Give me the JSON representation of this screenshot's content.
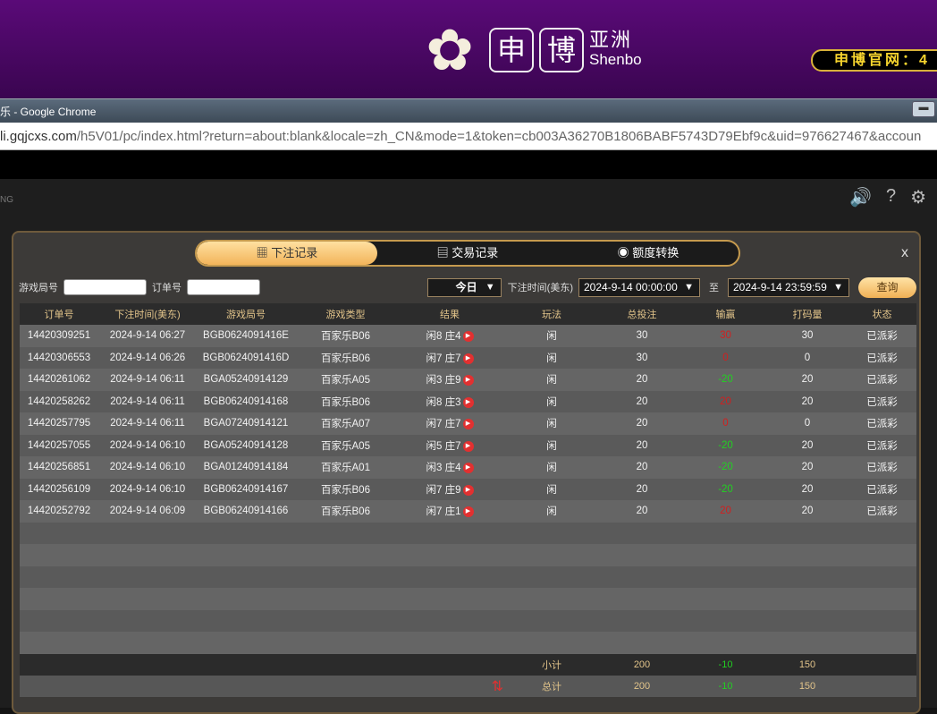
{
  "banner": {
    "logo_cn1": "申",
    "logo_cn2": "博",
    "logo_cn3": "亚洲",
    "logo_en": "Shenbo",
    "official": "申博官网：4"
  },
  "browser": {
    "title": "乐 - Google Chrome",
    "url_host": "li.gqjcxs.com",
    "url_path": "/h5V01/pc/index.html?return=about:blank&locale=zh_CN&mode=1&token=cb003A36270B1806BABF5743D79Ebf9c&uid=976627467&accoun"
  },
  "game": {
    "brand_fragment": "NG"
  },
  "modal": {
    "tabs": [
      {
        "label": "下注记录",
        "icon": "calendar-icon"
      },
      {
        "label": "交易记录",
        "icon": "clipboard-icon"
      },
      {
        "label": "额度转换",
        "icon": "coins-icon"
      }
    ],
    "close": "x",
    "filter": {
      "round_label": "游戏局号",
      "order_label": "订单号",
      "period": "今日",
      "time_label": "下注时间(美东)",
      "start": "2024-9-14 00:00:00",
      "to": "至",
      "end": "2024-9-14 23:59:59",
      "query": "查询"
    },
    "columns": [
      "订单号",
      "下注时间(美东)",
      "游戏局号",
      "游戏类型",
      "结果",
      "玩法",
      "总投注",
      "输赢",
      "打码量",
      "状态"
    ],
    "rows": [
      [
        "14420309251",
        "2024-9-14 06:27",
        "BGB0624091416E",
        "百家乐B06",
        "闲8 庄4",
        "闲",
        "30",
        "30",
        "30",
        "已派彩"
      ],
      [
        "14420306553",
        "2024-9-14 06:26",
        "BGB0624091416D",
        "百家乐B06",
        "闲7 庄7",
        "闲",
        "30",
        "0",
        "0",
        "已派彩"
      ],
      [
        "14420261062",
        "2024-9-14 06:11",
        "BGA05240914129",
        "百家乐A05",
        "闲3 庄9",
        "闲",
        "20",
        "-20",
        "20",
        "已派彩"
      ],
      [
        "14420258262",
        "2024-9-14 06:11",
        "BGB06240914168",
        "百家乐B06",
        "闲8 庄3",
        "闲",
        "20",
        "20",
        "20",
        "已派彩"
      ],
      [
        "14420257795",
        "2024-9-14 06:11",
        "BGA07240914121",
        "百家乐A07",
        "闲7 庄7",
        "闲",
        "20",
        "0",
        "0",
        "已派彩"
      ],
      [
        "14420257055",
        "2024-9-14 06:10",
        "BGA05240914128",
        "百家乐A05",
        "闲5 庄7",
        "闲",
        "20",
        "-20",
        "20",
        "已派彩"
      ],
      [
        "14420256851",
        "2024-9-14 06:10",
        "BGA01240914184",
        "百家乐A01",
        "闲3 庄4",
        "闲",
        "20",
        "-20",
        "20",
        "已派彩"
      ],
      [
        "14420256109",
        "2024-9-14 06:10",
        "BGB06240914167",
        "百家乐B06",
        "闲7 庄9",
        "闲",
        "20",
        "-20",
        "20",
        "已派彩"
      ],
      [
        "14420252792",
        "2024-9-14 06:09",
        "BGB06240914166",
        "百家乐B06",
        "闲7 庄1",
        "闲",
        "20",
        "20",
        "20",
        "已派彩"
      ]
    ],
    "subtotal": {
      "label": "小计",
      "bet": "200",
      "win": "-10",
      "code": "150"
    },
    "total": {
      "label": "总计",
      "bet": "200",
      "win": "-10",
      "code": "150"
    },
    "colors": {
      "win": "#d02020",
      "loss": "#22d022",
      "accent": "#f2b45a"
    }
  }
}
